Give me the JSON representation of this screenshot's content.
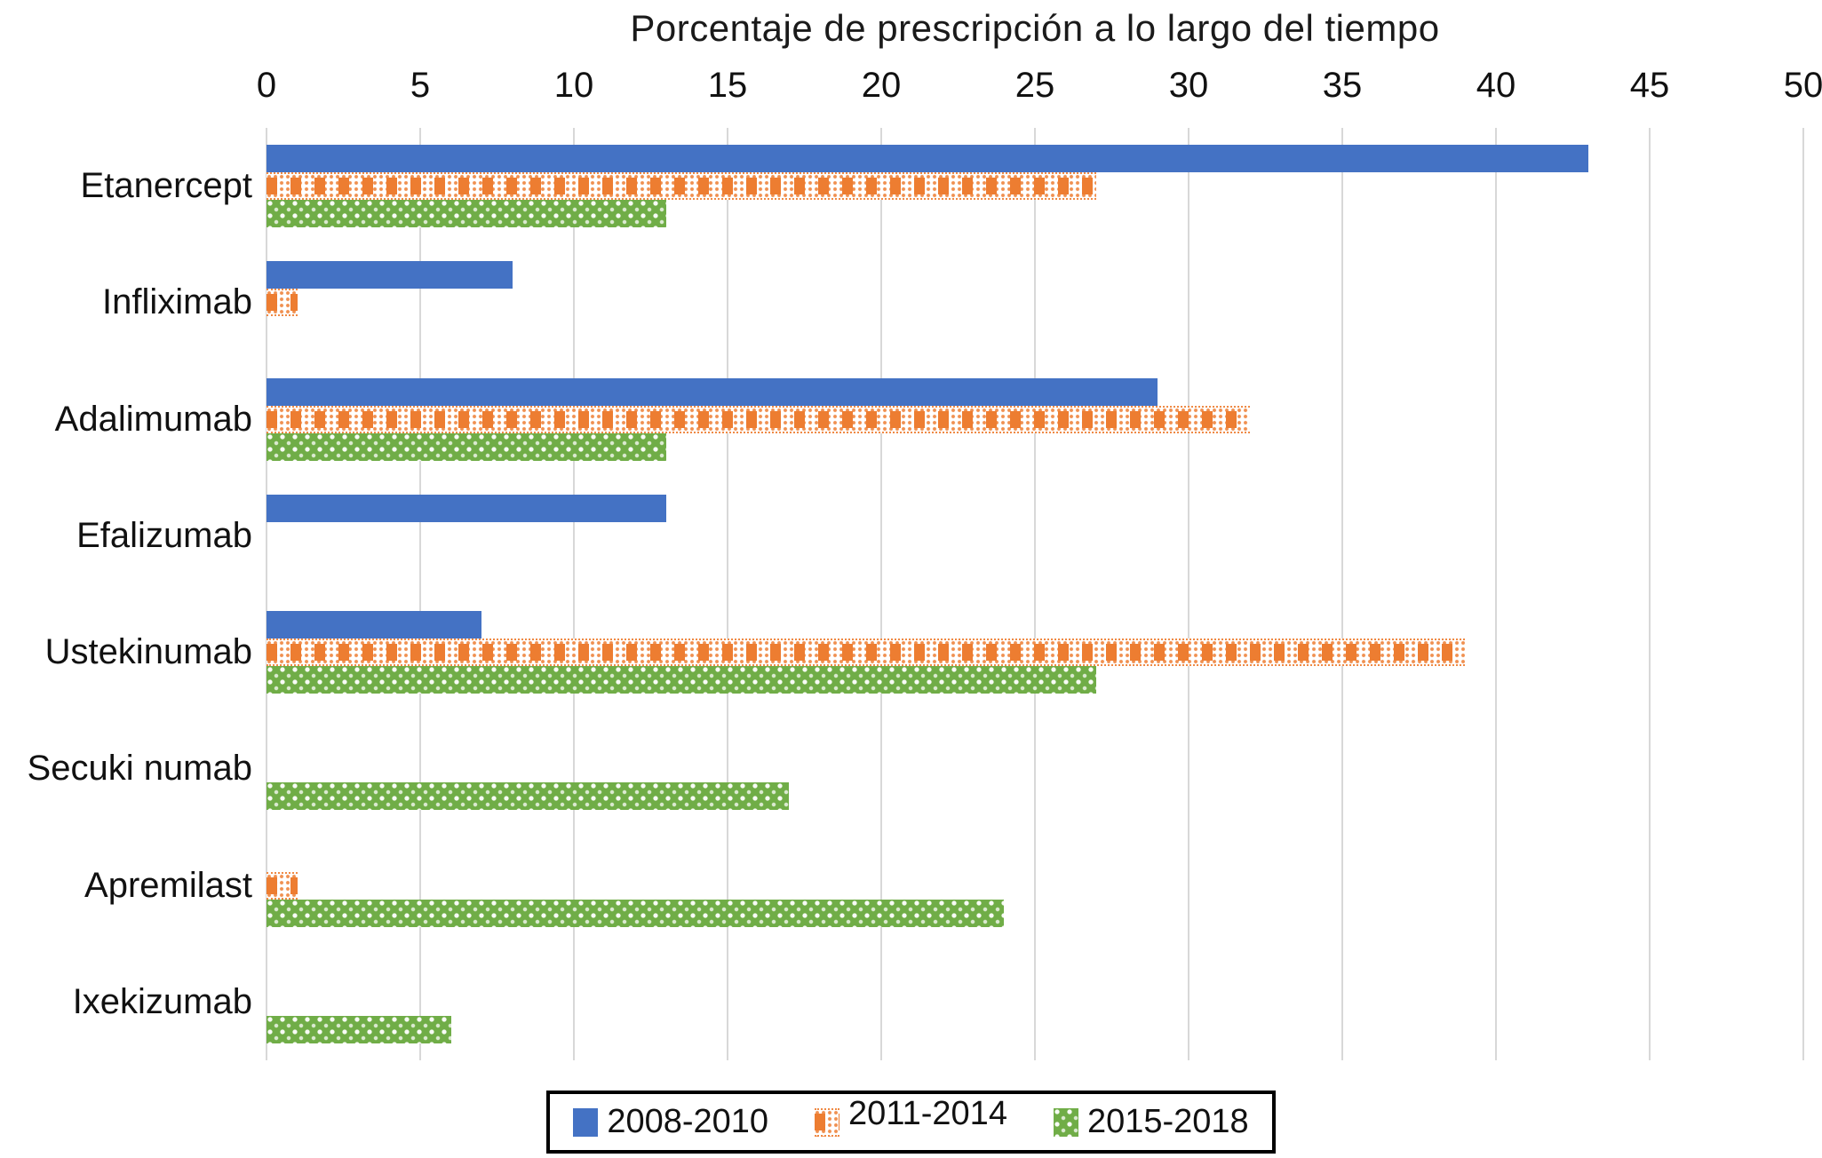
{
  "title": "Porcentaje de prescripción a lo largo del tiempo",
  "chart_data": {
    "type": "bar",
    "orientation": "horizontal",
    "title": "Porcentaje de prescripción a lo largo del tiempo",
    "xlabel": "",
    "ylabel": "",
    "xlim": [
      0,
      50
    ],
    "xticks": [
      0,
      5,
      10,
      15,
      20,
      25,
      30,
      35,
      40,
      45,
      50
    ],
    "grid": "vertical",
    "gridline_color": "#d8d8d8",
    "legend_position": "bottom",
    "categories": [
      "Etanercept",
      "Infliximab",
      "Adalimumab",
      "Efalizumab",
      "Ustekinumab",
      "Secuki numab",
      "Apremilast",
      "Ixekizumab"
    ],
    "series": [
      {
        "name": "2008-2010",
        "color": "#4472C4",
        "pattern": "solid",
        "values": [
          43,
          8,
          29,
          13,
          7,
          0,
          0,
          0
        ]
      },
      {
        "name": "2011-2014",
        "color": "#ED7D31",
        "pattern": "orange-check",
        "values": [
          27,
          1,
          32,
          0,
          39,
          0,
          1,
          0
        ]
      },
      {
        "name": "2015-2018",
        "color": "#70AD47",
        "pattern": "green-dots",
        "values": [
          13,
          0,
          13,
          0,
          27,
          17,
          24,
          6
        ]
      }
    ]
  }
}
